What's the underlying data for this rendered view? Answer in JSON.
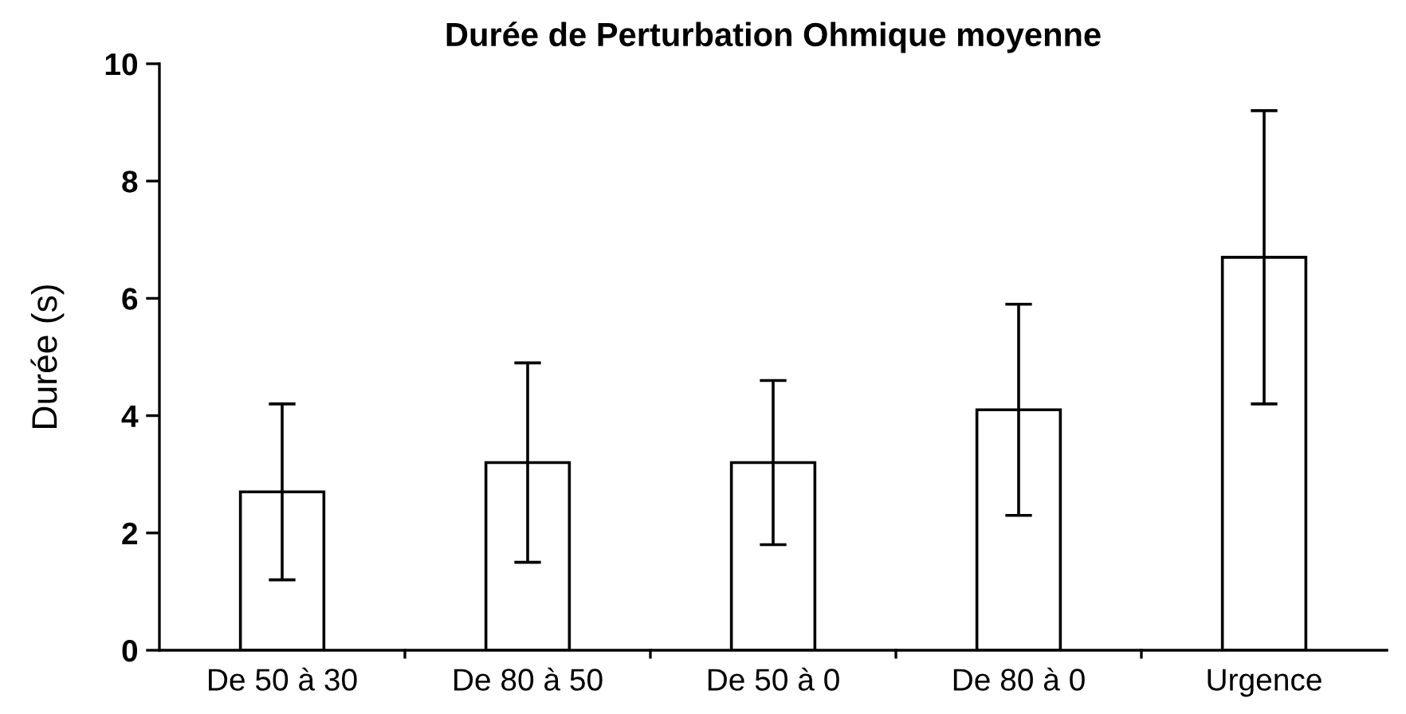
{
  "chart_data": {
    "type": "bar",
    "title": "Durée de Perturbation Ohmique moyenne",
    "ylabel": "Durée (s)",
    "categories": [
      "De 50 à 30",
      "De 80 à 50",
      "De 50 à 0",
      "De 80 à 0",
      "Urgence"
    ],
    "values": [
      2.7,
      3.2,
      3.2,
      4.1,
      6.7
    ],
    "errors": [
      [
        1.2,
        4.2
      ],
      [
        1.5,
        4.9
      ],
      [
        1.8,
        4.6
      ],
      [
        2.3,
        5.9
      ],
      [
        4.2,
        9.2
      ]
    ],
    "color": "#ffffff",
    "ylim": [
      0,
      10
    ],
    "yticks": [
      0,
      2,
      4,
      6,
      8,
      10
    ],
    "grid": false,
    "legend": false
  }
}
